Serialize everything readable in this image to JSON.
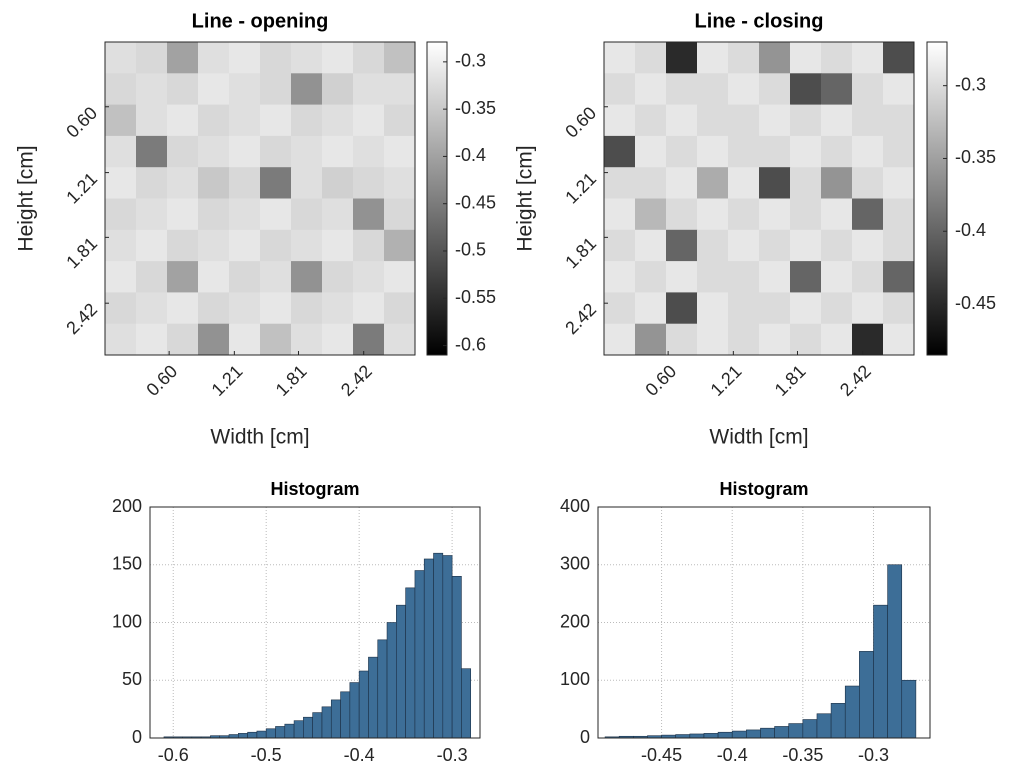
{
  "chart_data": [
    {
      "type": "heatmap",
      "title": "Line - opening",
      "xlabel": "Width [cm]",
      "ylabel": "Height [cm]",
      "xlim": [
        0,
        2.9
      ],
      "ylim": [
        0,
        2.9
      ],
      "ydir": "reverse",
      "xticks": [
        {
          "value": 0.6,
          "label": "0.60"
        },
        1.21,
        1.81,
        2.42
      ],
      "yticks": [
        {
          "value": 0.6,
          "label": "0.60"
        },
        1.21,
        1.81,
        2.42
      ],
      "colormap": [
        "#000000",
        "#ffffff"
      ],
      "clim": [
        -0.61,
        -0.279
      ],
      "cticks": [
        -0.3,
        -0.35,
        -0.4,
        -0.45,
        -0.5,
        -0.55,
        -0.6
      ],
      "z": [
        [
          -0.32,
          -0.33,
          -0.4,
          -0.32,
          -0.31,
          -0.33,
          -0.32,
          -0.31,
          -0.33,
          -0.36
        ],
        [
          -0.33,
          -0.32,
          -0.33,
          -0.31,
          -0.32,
          -0.33,
          -0.42,
          -0.34,
          -0.32,
          -0.32
        ],
        [
          -0.36,
          -0.32,
          -0.31,
          -0.33,
          -0.32,
          -0.31,
          -0.33,
          -0.32,
          -0.31,
          -0.33
        ],
        [
          -0.32,
          -0.45,
          -0.33,
          -0.32,
          -0.31,
          -0.33,
          -0.32,
          -0.31,
          -0.32,
          -0.31
        ],
        [
          -0.31,
          -0.33,
          -0.32,
          -0.35,
          -0.33,
          -0.45,
          -0.32,
          -0.34,
          -0.33,
          -0.32
        ],
        [
          -0.33,
          -0.32,
          -0.31,
          -0.33,
          -0.32,
          -0.31,
          -0.33,
          -0.32,
          -0.42,
          -0.33
        ],
        [
          -0.32,
          -0.31,
          -0.33,
          -0.32,
          -0.31,
          -0.33,
          -0.32,
          -0.31,
          -0.33,
          -0.38
        ],
        [
          -0.31,
          -0.33,
          -0.4,
          -0.31,
          -0.33,
          -0.32,
          -0.42,
          -0.33,
          -0.32,
          -0.31
        ],
        [
          -0.33,
          -0.32,
          -0.31,
          -0.33,
          -0.32,
          -0.31,
          -0.33,
          -0.32,
          -0.31,
          -0.33
        ],
        [
          -0.32,
          -0.31,
          -0.33,
          -0.42,
          -0.31,
          -0.36,
          -0.32,
          -0.31,
          -0.45,
          -0.32
        ]
      ]
    },
    {
      "type": "heatmap",
      "title": "Line - closing",
      "xlabel": "Width [cm]",
      "ylabel": "Height [cm]",
      "xlim": [
        0,
        2.9
      ],
      "ylim": [
        0,
        2.9
      ],
      "ydir": "reverse",
      "xticks": [
        {
          "value": 0.6,
          "label": "0.60"
        },
        1.21,
        1.81,
        2.42
      ],
      "yticks": [
        {
          "value": 0.6,
          "label": "0.60"
        },
        1.21,
        1.81,
        2.42
      ],
      "colormap": [
        "#000000",
        "#ffffff"
      ],
      "clim": [
        -0.485,
        -0.27
      ],
      "cticks": [
        -0.3,
        -0.35,
        -0.4,
        -0.45
      ],
      "z": [
        [
          -0.29,
          -0.3,
          -0.45,
          -0.29,
          -0.3,
          -0.36,
          -0.29,
          -0.3,
          -0.29,
          -0.42
        ],
        [
          -0.3,
          -0.29,
          -0.3,
          -0.3,
          -0.29,
          -0.3,
          -0.42,
          -0.4,
          -0.3,
          -0.29
        ],
        [
          -0.29,
          -0.3,
          -0.29,
          -0.3,
          -0.3,
          -0.29,
          -0.3,
          -0.29,
          -0.3,
          -0.3
        ],
        [
          -0.42,
          -0.29,
          -0.3,
          -0.29,
          -0.3,
          -0.3,
          -0.29,
          -0.3,
          -0.29,
          -0.3
        ],
        [
          -0.3,
          -0.3,
          -0.29,
          -0.34,
          -0.29,
          -0.42,
          -0.3,
          -0.36,
          -0.3,
          -0.29
        ],
        [
          -0.29,
          -0.33,
          -0.3,
          -0.29,
          -0.3,
          -0.29,
          -0.3,
          -0.29,
          -0.4,
          -0.3
        ],
        [
          -0.3,
          -0.29,
          -0.4,
          -0.3,
          -0.29,
          -0.3,
          -0.29,
          -0.3,
          -0.29,
          -0.3
        ],
        [
          -0.29,
          -0.3,
          -0.29,
          -0.3,
          -0.3,
          -0.29,
          -0.4,
          -0.29,
          -0.3,
          -0.4
        ],
        [
          -0.3,
          -0.29,
          -0.42,
          -0.29,
          -0.3,
          -0.3,
          -0.29,
          -0.3,
          -0.29,
          -0.3
        ],
        [
          -0.29,
          -0.36,
          -0.3,
          -0.29,
          -0.3,
          -0.29,
          -0.3,
          -0.29,
          -0.45,
          -0.29
        ]
      ]
    },
    {
      "type": "histogram",
      "title": "Histogram",
      "color": "#3d6e97",
      "grid": true,
      "xlim": [
        -0.625,
        -0.27
      ],
      "ylim": [
        0,
        200
      ],
      "xticks": [
        -0.6,
        -0.5,
        -0.4,
        -0.3
      ],
      "yticks": [
        0,
        50,
        100,
        150,
        200
      ],
      "bins": [
        -0.61,
        -0.6,
        -0.59,
        -0.58,
        -0.57,
        -0.56,
        -0.55,
        -0.54,
        -0.53,
        -0.52,
        -0.51,
        -0.5,
        -0.49,
        -0.48,
        -0.47,
        -0.46,
        -0.45,
        -0.44,
        -0.43,
        -0.42,
        -0.41,
        -0.4,
        -0.39,
        -0.38,
        -0.37,
        -0.36,
        -0.35,
        -0.34,
        -0.33,
        -0.32,
        -0.31,
        -0.3,
        -0.29,
        -0.28
      ],
      "values": [
        1,
        1,
        1,
        1,
        1,
        2,
        2,
        3,
        4,
        5,
        6,
        8,
        10,
        12,
        15,
        18,
        22,
        27,
        33,
        40,
        48,
        58,
        70,
        85,
        100,
        115,
        130,
        145,
        155,
        160,
        158,
        140,
        60
      ]
    },
    {
      "type": "histogram",
      "title": "Histogram",
      "color": "#3d6e97",
      "grid": true,
      "xlim": [
        -0.495,
        -0.26
      ],
      "ylim": [
        0,
        400
      ],
      "xticks": [
        -0.45,
        -0.4,
        -0.35,
        -0.3
      ],
      "yticks": [
        0,
        100,
        200,
        300,
        400
      ],
      "bins": [
        -0.49,
        -0.48,
        -0.47,
        -0.46,
        -0.45,
        -0.44,
        -0.43,
        -0.42,
        -0.41,
        -0.4,
        -0.39,
        -0.38,
        -0.37,
        -0.36,
        -0.35,
        -0.34,
        -0.33,
        -0.32,
        -0.31,
        -0.3,
        -0.29,
        -0.28,
        -0.27
      ],
      "values": [
        2,
        3,
        3,
        4,
        5,
        6,
        7,
        8,
        10,
        12,
        14,
        17,
        20,
        25,
        32,
        42,
        60,
        90,
        150,
        230,
        300,
        100
      ]
    }
  ]
}
